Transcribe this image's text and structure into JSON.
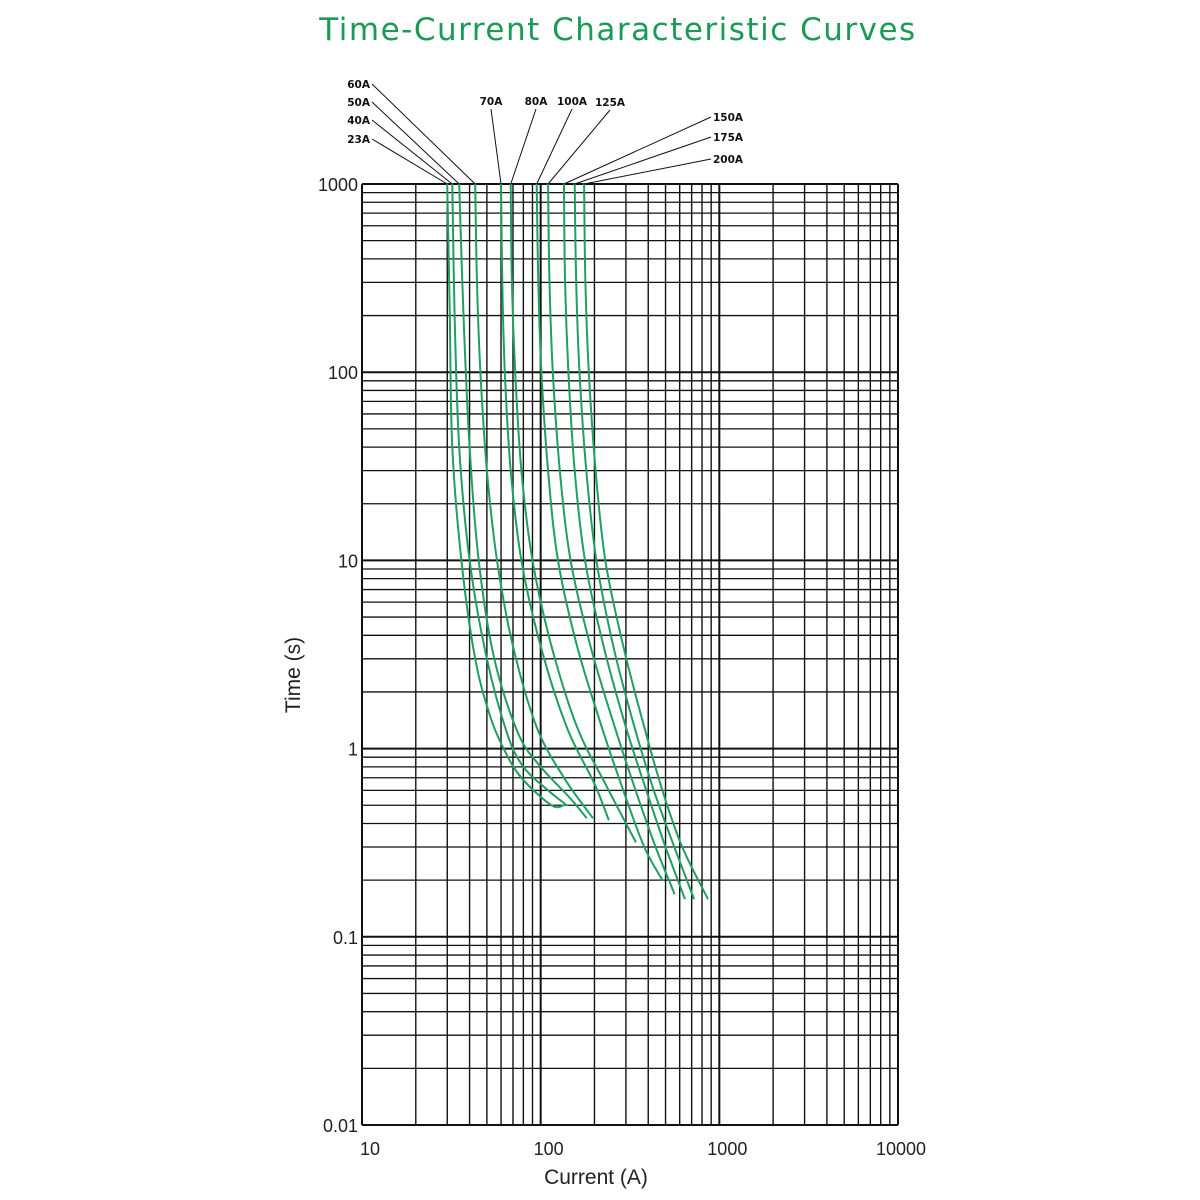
{
  "chart_data": {
    "type": "line",
    "title": "Time-Current Characteristic Curves",
    "xlabel": "Current (A)",
    "ylabel": "Time (s)",
    "x_scale": "log",
    "y_scale": "log",
    "xlim": [
      10,
      10000
    ],
    "ylim": [
      0.01,
      1000
    ],
    "x_tick_labels": [
      "10",
      "100",
      "1000",
      "10000"
    ],
    "y_tick_labels": [
      "1000",
      "100",
      "10",
      "1",
      "0.1",
      "0.01"
    ],
    "grid": true,
    "series_color": "#1f9f60",
    "series": [
      {
        "name": "23A",
        "points": [
          [
            30,
            1000
          ],
          [
            31,
            200
          ],
          [
            32,
            40
          ],
          [
            36,
            10
          ],
          [
            43,
            3
          ],
          [
            52,
            1.5
          ],
          [
            62,
            1
          ],
          [
            78,
            0.7
          ],
          [
            115,
            0.5
          ],
          [
            135,
            0.5
          ]
        ]
      },
      {
        "name": "40A",
        "points": [
          [
            32,
            1000
          ],
          [
            33,
            200
          ],
          [
            35,
            40
          ],
          [
            40,
            10
          ],
          [
            50,
            3
          ],
          [
            65,
            1.2
          ],
          [
            80,
            0.8
          ],
          [
            110,
            0.6
          ],
          [
            140,
            0.5
          ]
        ]
      },
      {
        "name": "50A",
        "points": [
          [
            35,
            1000
          ],
          [
            37,
            200
          ],
          [
            40,
            40
          ],
          [
            45,
            10
          ],
          [
            55,
            3
          ],
          [
            75,
            1.2
          ],
          [
            100,
            0.8
          ],
          [
            145,
            0.55
          ],
          [
            180,
            0.43
          ]
        ]
      },
      {
        "name": "60A",
        "points": [
          [
            43,
            1000
          ],
          [
            44,
            300
          ],
          [
            46,
            100
          ],
          [
            50,
            30
          ],
          [
            57,
            10
          ],
          [
            70,
            3.5
          ],
          [
            95,
            1.3
          ],
          [
            135,
            0.7
          ],
          [
            195,
            0.43
          ]
        ]
      },
      {
        "name": "70A",
        "points": [
          [
            60,
            1000
          ],
          [
            61,
            300
          ],
          [
            63,
            100
          ],
          [
            68,
            30
          ],
          [
            78,
            10
          ],
          [
            100,
            3.5
          ],
          [
            140,
            1.3
          ],
          [
            200,
            0.65
          ],
          [
            240,
            0.42
          ]
        ]
      },
      {
        "name": "80A",
        "points": [
          [
            68,
            1000
          ],
          [
            69,
            300
          ],
          [
            72,
            100
          ],
          [
            78,
            30
          ],
          [
            90,
            10
          ],
          [
            115,
            3.5
          ],
          [
            160,
            1.3
          ],
          [
            230,
            0.65
          ],
          [
            340,
            0.32
          ]
        ]
      },
      {
        "name": "100A",
        "points": [
          [
            95,
            1000
          ],
          [
            97,
            300
          ],
          [
            101,
            100
          ],
          [
            110,
            30
          ],
          [
            125,
            10
          ],
          [
            160,
            3.5
          ],
          [
            220,
            1.3
          ],
          [
            290,
            0.6
          ],
          [
            380,
            0.3
          ],
          [
            480,
            0.2
          ]
        ]
      },
      {
        "name": "125A",
        "points": [
          [
            110,
            1000
          ],
          [
            112,
            300
          ],
          [
            117,
            100
          ],
          [
            128,
            30
          ],
          [
            147,
            10
          ],
          [
            190,
            3.5
          ],
          [
            260,
            1.3
          ],
          [
            340,
            0.6
          ],
          [
            440,
            0.3
          ],
          [
            560,
            0.17
          ]
        ]
      },
      {
        "name": "150A",
        "points": [
          [
            135,
            1000
          ],
          [
            137,
            300
          ],
          [
            143,
            100
          ],
          [
            155,
            30
          ],
          [
            177,
            10
          ],
          [
            225,
            3.5
          ],
          [
            300,
            1.3
          ],
          [
            390,
            0.6
          ],
          [
            500,
            0.3
          ],
          [
            640,
            0.16
          ]
        ]
      },
      {
        "name": "175A",
        "points": [
          [
            155,
            1000
          ],
          [
            158,
            300
          ],
          [
            165,
            100
          ],
          [
            180,
            30
          ],
          [
            205,
            10
          ],
          [
            255,
            3.5
          ],
          [
            335,
            1.3
          ],
          [
            430,
            0.6
          ],
          [
            560,
            0.3
          ],
          [
            720,
            0.16
          ]
        ]
      },
      {
        "name": "200A",
        "points": [
          [
            175,
            1000
          ],
          [
            178,
            300
          ],
          [
            186,
            100
          ],
          [
            203,
            30
          ],
          [
            230,
            10
          ],
          [
            290,
            3.5
          ],
          [
            380,
            1.3
          ],
          [
            480,
            0.6
          ],
          [
            620,
            0.3
          ],
          [
            860,
            0.16
          ]
        ]
      }
    ]
  }
}
